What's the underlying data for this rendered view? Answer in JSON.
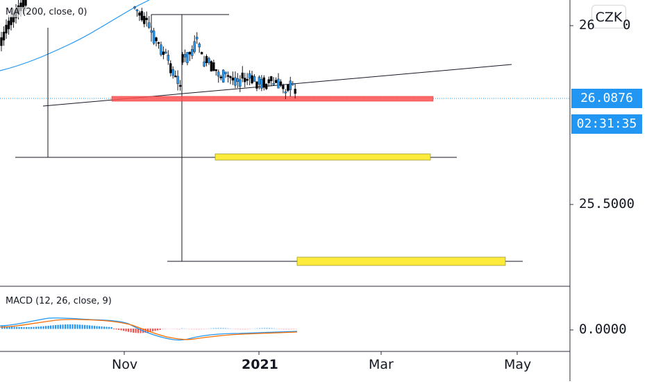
{
  "currency": "CZK",
  "indicators": {
    "ma_label": "MA (200, close, 0)",
    "macd_label": "MACD (12, 26, close, 9)"
  },
  "price_axis": {
    "top_label_partial": "26",
    "top_label_tail": "0",
    "mid_label": "25.5000",
    "current_price": "26.0876",
    "countdown": "02:31:35",
    "macd_zero": "0.0000"
  },
  "time_axis": {
    "labels": [
      "Nov",
      "2021",
      "Mar",
      "May"
    ]
  },
  "colors": {
    "up_candle": "#000000",
    "down_candle": "#2196f3",
    "ma_line": "#2196f3",
    "macd_line": "#2196f3",
    "signal_line": "#ff6d00",
    "red_zone": "#ff5252",
    "yellow_zone": "#ffeb3b",
    "price_tag": "#2196f3"
  },
  "chart_data": {
    "type": "candlestick",
    "instrument_currency": "CZK",
    "y_price_ticks": [
      26.0,
      25.5
    ],
    "current_price": 26.0876,
    "macd_zero_line": 0.0,
    "x_ticks": [
      "Nov",
      "2021",
      "Mar",
      "May"
    ],
    "series": [
      {
        "name": "MA (200, close, 0)",
        "kind": "moving-average"
      },
      {
        "name": "MACD (12, 26, close, 9)",
        "kind": "oscillator"
      }
    ],
    "annotations": {
      "support_zone_red": "near 26.09",
      "target_zone_yellow_1": "near 25.75",
      "target_zone_yellow_2": "near 25.37",
      "rising_trendline": "drawn across the consolidation"
    }
  }
}
